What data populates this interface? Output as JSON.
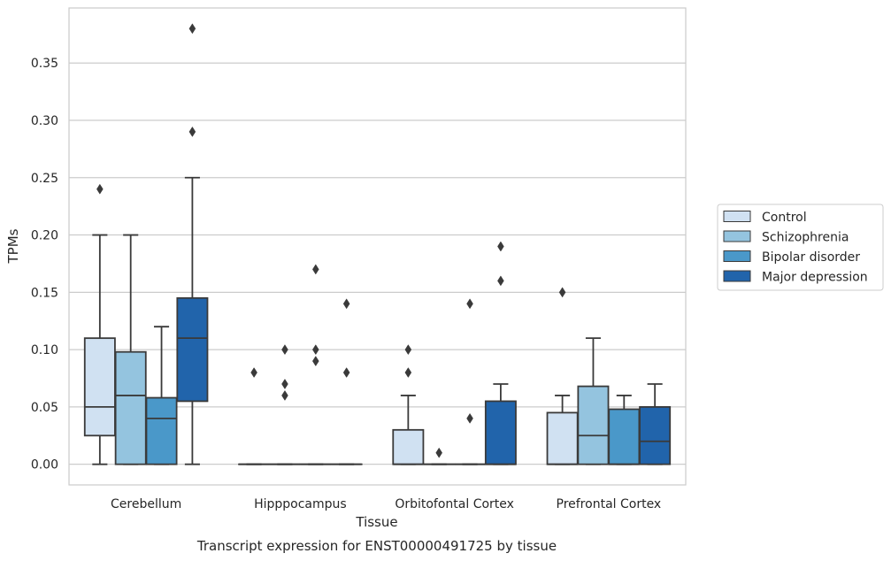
{
  "chart_data": {
    "type": "box",
    "xlabel": "Tissue",
    "ylabel": "TPMs",
    "caption": "Transcript expression for ENST00000491725 by tissue",
    "ylim": [
      -0.018,
      0.398
    ],
    "yticks": [
      "0.00",
      "0.05",
      "0.10",
      "0.15",
      "0.20",
      "0.25",
      "0.30",
      "0.35"
    ],
    "grid": true,
    "legend_placement": "right",
    "categories": [
      "Cerebellum",
      "Hipppocampus",
      "Orbitofontal Cortex",
      "Prefrontal Cortex"
    ],
    "series": [
      {
        "name": "Control",
        "color": "#d0e1f2",
        "boxes": [
          {
            "min": 0.0,
            "q1": 0.025,
            "median": 0.05,
            "q3": 0.11,
            "max": 0.2,
            "outliers": [
              0.24
            ]
          },
          {
            "min": 0.0,
            "q1": 0.0,
            "median": 0.0,
            "q3": 0.0,
            "max": 0.0,
            "outliers": [
              0.08
            ]
          },
          {
            "min": 0.0,
            "q1": 0.0,
            "median": 0.0,
            "q3": 0.03,
            "max": 0.06,
            "outliers": [
              0.08,
              0.1
            ]
          },
          {
            "min": 0.0,
            "q1": 0.0,
            "median": 0.0,
            "q3": 0.045,
            "max": 0.06,
            "outliers": [
              0.15
            ]
          }
        ]
      },
      {
        "name": "Schizophrenia",
        "color": "#94c4df",
        "boxes": [
          {
            "min": 0.0,
            "q1": 0.0,
            "median": 0.06,
            "q3": 0.098,
            "max": 0.2,
            "outliers": []
          },
          {
            "min": 0.0,
            "q1": 0.0,
            "median": 0.0,
            "q3": 0.0,
            "max": 0.0,
            "outliers": [
              0.06,
              0.07,
              0.1
            ]
          },
          {
            "min": 0.0,
            "q1": 0.0,
            "median": 0.0,
            "q3": 0.0,
            "max": 0.0,
            "outliers": [
              0.01
            ]
          },
          {
            "min": 0.0,
            "q1": 0.0,
            "median": 0.025,
            "q3": 0.068,
            "max": 0.11,
            "outliers": []
          }
        ]
      },
      {
        "name": "Bipolar disorder",
        "color": "#4a98c9",
        "boxes": [
          {
            "min": 0.0,
            "q1": 0.0,
            "median": 0.04,
            "q3": 0.058,
            "max": 0.12,
            "outliers": []
          },
          {
            "min": 0.0,
            "q1": 0.0,
            "median": 0.0,
            "q3": 0.0,
            "max": 0.0,
            "outliers": [
              0.09,
              0.1,
              0.17
            ]
          },
          {
            "min": 0.0,
            "q1": 0.0,
            "median": 0.0,
            "q3": 0.0,
            "max": 0.0,
            "outliers": [
              0.04,
              0.14
            ]
          },
          {
            "min": 0.0,
            "q1": 0.0,
            "median": 0.0,
            "q3": 0.048,
            "max": 0.06,
            "outliers": []
          }
        ]
      },
      {
        "name": "Major depression",
        "color": "#2164ab",
        "boxes": [
          {
            "min": 0.0,
            "q1": 0.055,
            "median": 0.11,
            "q3": 0.145,
            "max": 0.25,
            "outliers": [
              0.29,
              0.38
            ]
          },
          {
            "min": 0.0,
            "q1": 0.0,
            "median": 0.0,
            "q3": 0.0,
            "max": 0.0,
            "outliers": [
              0.08,
              0.14
            ]
          },
          {
            "min": 0.0,
            "q1": 0.0,
            "median": 0.0,
            "q3": 0.055,
            "max": 0.07,
            "outliers": [
              0.16,
              0.19
            ]
          },
          {
            "min": 0.0,
            "q1": 0.0,
            "median": 0.02,
            "q3": 0.05,
            "max": 0.07,
            "outliers": []
          }
        ]
      }
    ]
  }
}
